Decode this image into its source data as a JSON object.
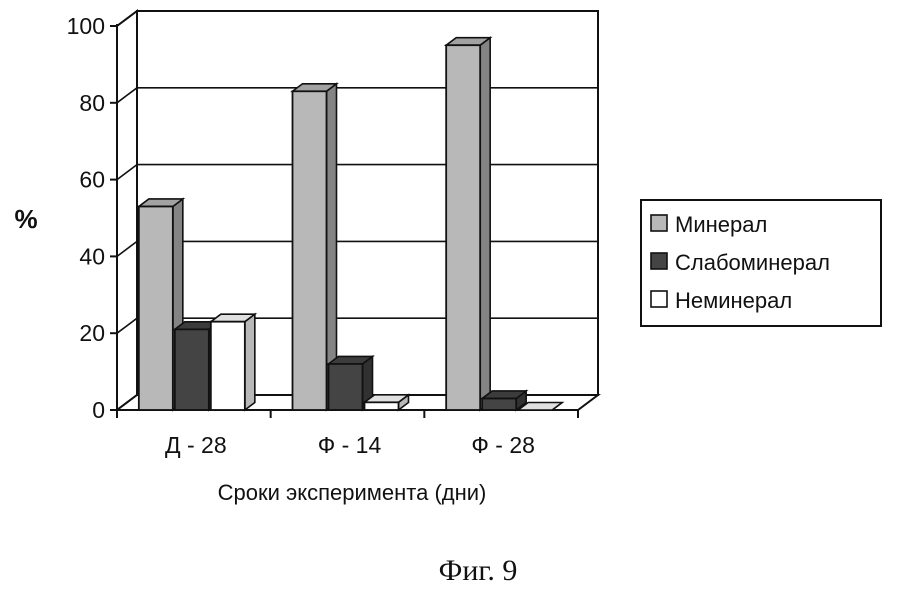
{
  "chart_data": {
    "type": "bar",
    "categories": [
      "Д - 28",
      "Ф - 14",
      "Ф - 28"
    ],
    "series": [
      {
        "name": "Минерал",
        "values": [
          53,
          83,
          95
        ],
        "color": "#b8b8b8"
      },
      {
        "name": "Слабоминерал",
        "values": [
          21,
          12,
          3
        ],
        "color": "#444444"
      },
      {
        "name": "Неминерал",
        "values": [
          23,
          2,
          0
        ],
        "color": "#ffffff"
      }
    ],
    "xlabel": "Сроки эксперимента (дни)",
    "ylabel": "%",
    "ylim": [
      0,
      100
    ],
    "yticks": [
      0,
      20,
      40,
      60,
      80,
      100
    ],
    "ytick_labels": [
      "0",
      "20",
      "40",
      "60",
      "80",
      "100"
    ],
    "grid": true,
    "legend_position": "right",
    "three_d": true
  },
  "caption": "Фиг. 9"
}
